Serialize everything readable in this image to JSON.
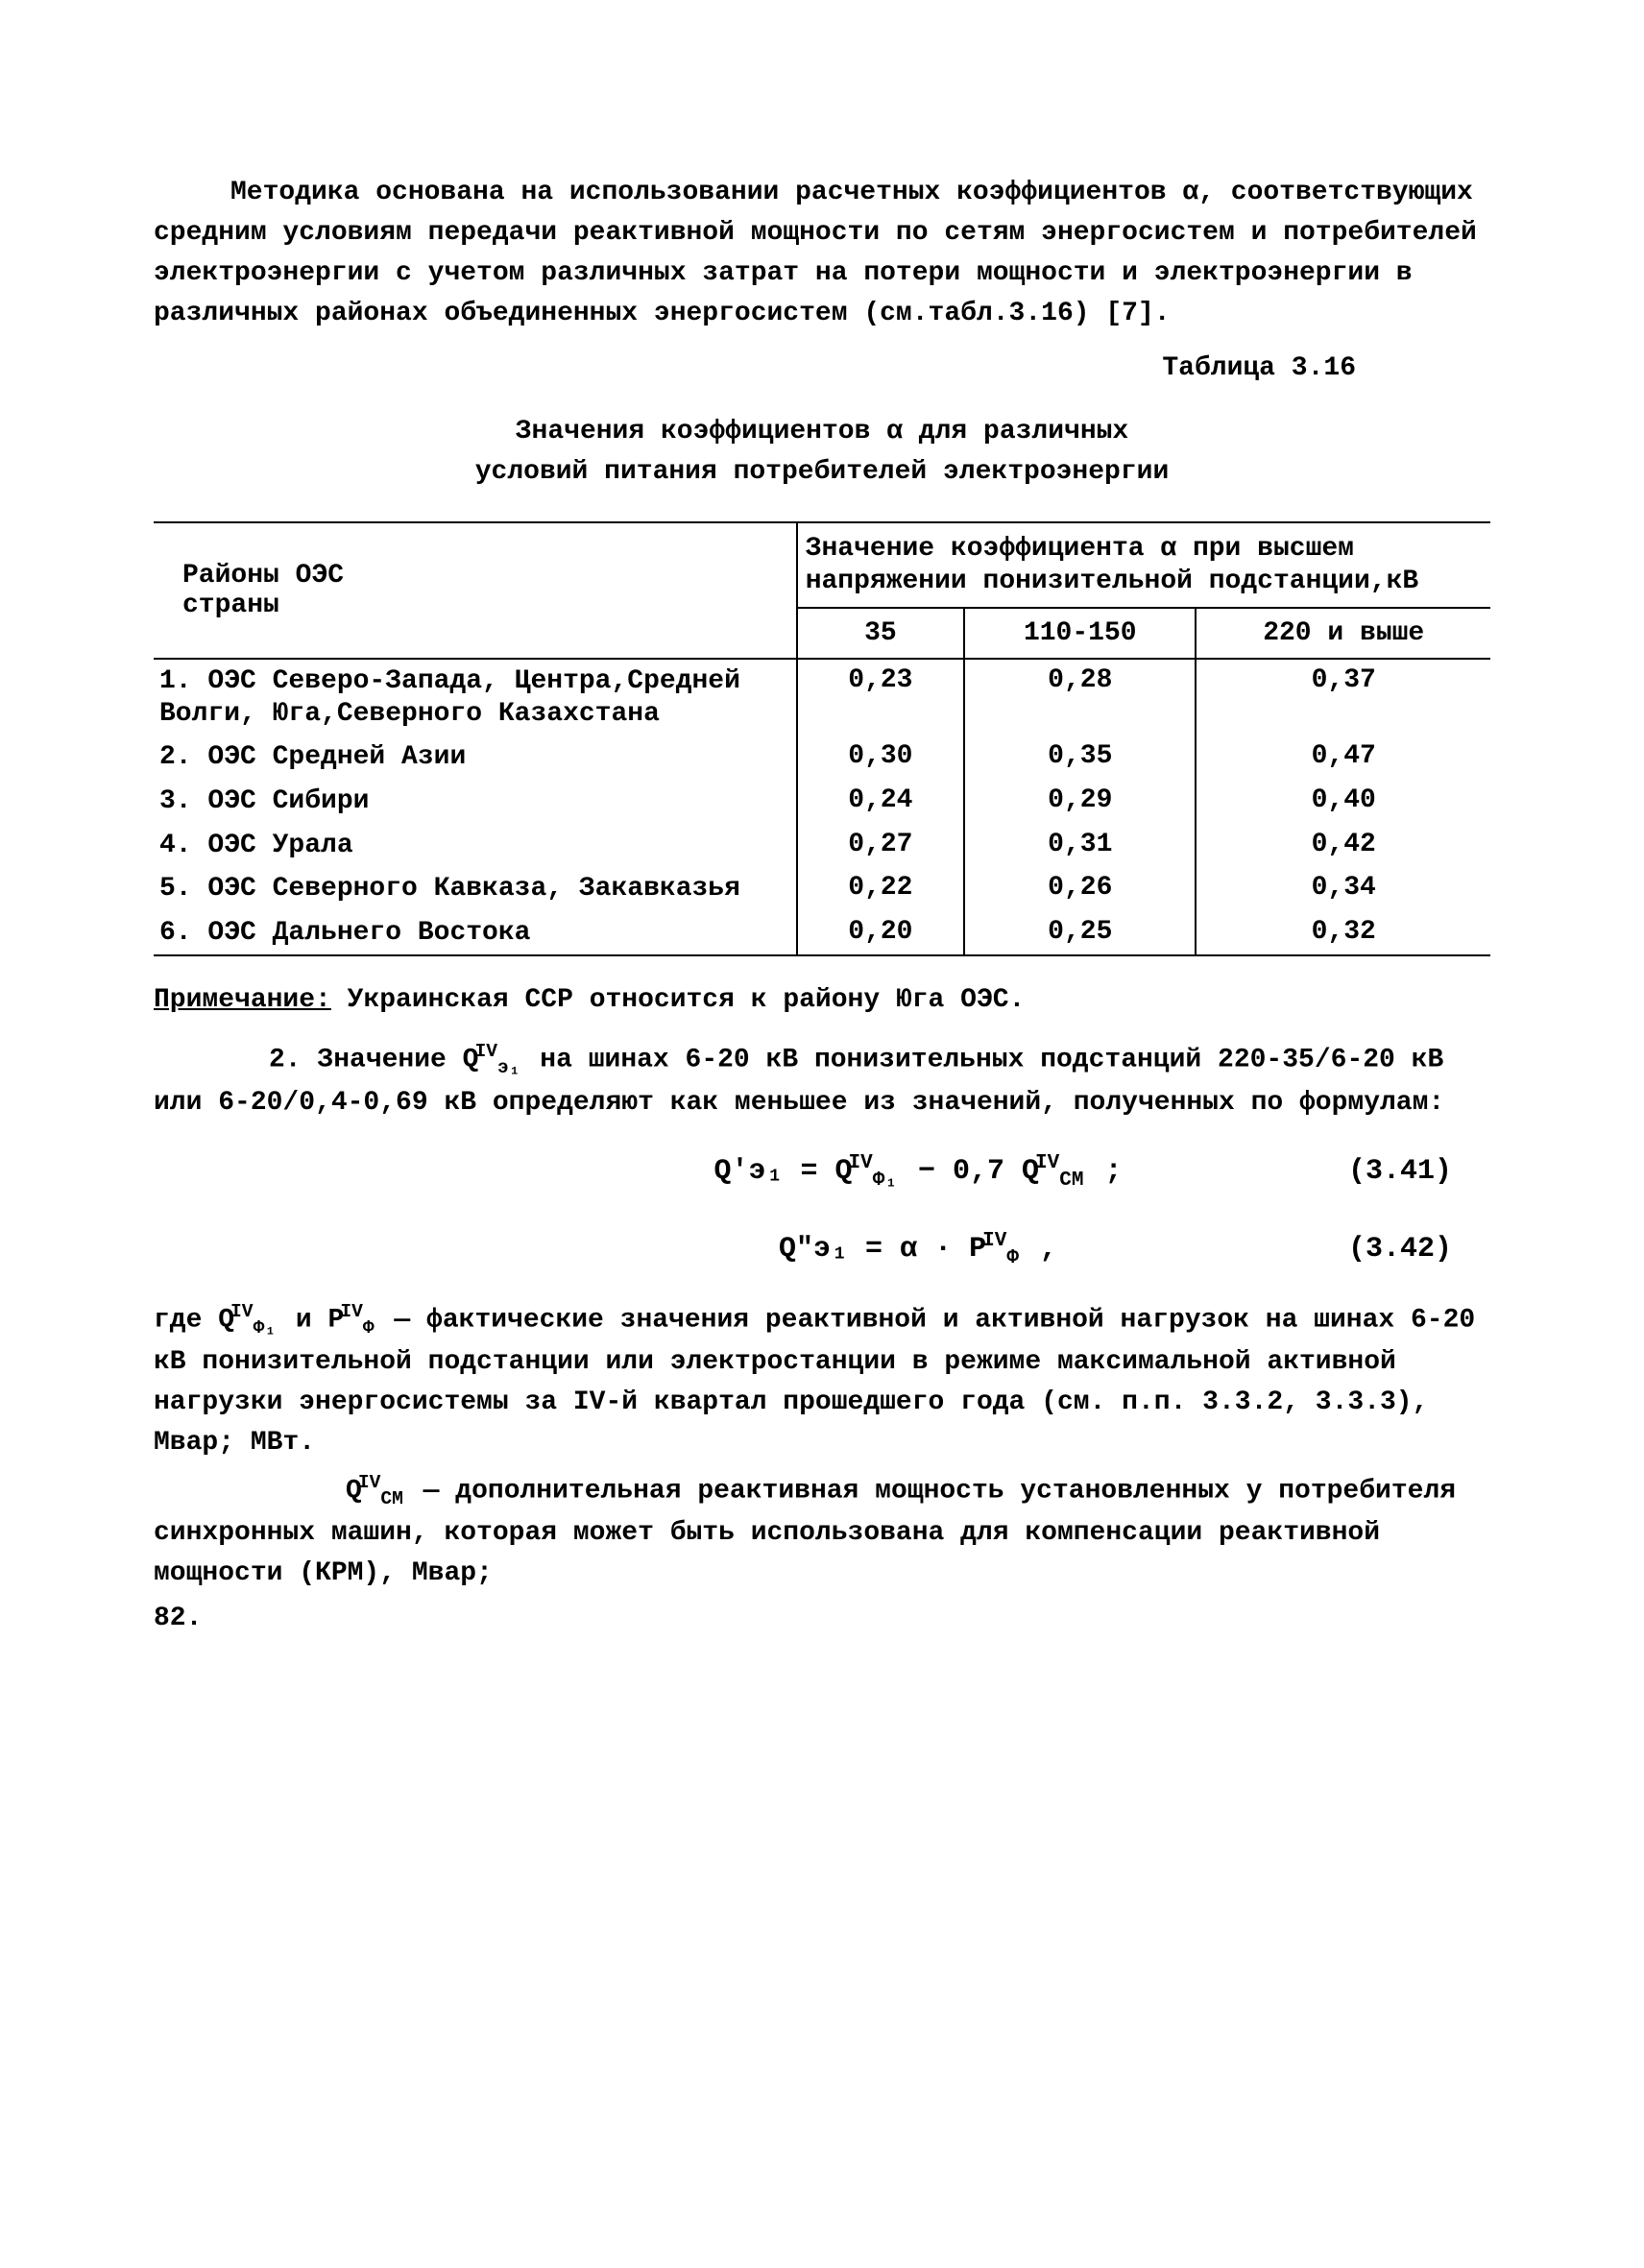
{
  "intro_paragraph": "Методика основана на использовании расчетных коэффициентов α, соответствующих средним условиям передачи реактивной мощности по сетям энергосистем и потребителей электроэнергии с учетом различных затрат на потери мощности и электроэнергии в различных районах объединенных энергосистем (см.табл.3.16) [7].",
  "table_label": "Таблица 3.16",
  "table_title_line1": "Значения коэффициентов  α   для различных",
  "table_title_line2": "условий питания потребителей электроэнергии",
  "table": {
    "header_left_line1": "Районы ОЭС",
    "header_left_line2": "страны",
    "header_right": "Значение коэффициента  α   при высшем напряжении понизительной подстанции,кВ",
    "subheaders": [
      "35",
      "110-150",
      "220 и выше"
    ],
    "rows": [
      {
        "region": "1. ОЭС Северо-Запада, Центра,Средней Волги, Юга,Северного Казахстана",
        "v35": "0,23",
        "v110": "0,28",
        "v220": "0,37"
      },
      {
        "region": "2. ОЭС Средней Азии",
        "v35": "0,30",
        "v110": "0,35",
        "v220": "0,47"
      },
      {
        "region": "3. ОЭС Сибири",
        "v35": "0,24",
        "v110": "0,29",
        "v220": "0,40"
      },
      {
        "region": "4. ОЭС Урала",
        "v35": "0,27",
        "v110": "0,31",
        "v220": "0,42"
      },
      {
        "region": "5. ОЭС Северного Кавказа, Закавказья",
        "v35": "0,22",
        "v110": "0,26",
        "v220": "0,34"
      },
      {
        "region": "6. ОЭС Дальнего Востока",
        "v35": "0,20",
        "v110": "0,25",
        "v220": "0,32"
      }
    ]
  },
  "note_label": "Примечание:",
  "note_text": "  Украинская ССР относится к району Юга ОЭС.",
  "section2_intro": "2. Значение  Q",
  "section2_super": "IV",
  "section2_sub": "э₁",
  "section2_rest": "  на шинах 6-20 кВ понизительных подстанций 220-35/6-20 кВ или 6-20/0,4-0,69 кВ определяют как меньшее из значений, полученных по формулам:",
  "formula1": {
    "text": "Q'э₁  =  Q",
    "phi_super": "IV",
    "phi_sub": "Ф₁",
    "mid": " − 0,7 Q",
    "cm_super": "IV",
    "cm_sub": "СМ",
    "end": " ;",
    "num": "(3.41)"
  },
  "formula2": {
    "text": "Q\"э₁  =  α · P",
    "super": "IV",
    "sub": "Ф",
    "end": "   ,",
    "num": "(3.42)"
  },
  "where_label": "где  ",
  "where_vars": "Q",
  "where_q_sup": "IV",
  "where_q_sub": "Ф₁",
  "where_and": "  и  P",
  "where_p_sup": "IV",
  "where_p_sub": "Ф",
  "where_text": "  — фактические значения реактивной и активной нагрузок на шинах 6-20 кВ понизительной подстанции или электростанции в режиме максимальной активной нагрузки энергосистемы за IV-й квартал прошедшего года (см. п.п. 3.3.2, 3.3.3), Мвар; МВт.",
  "qcm_var": "Q",
  "qcm_sup": "IV",
  "qcm_sub": "СМ",
  "qcm_text": " — дополнительная реактивная мощность установленных у потребителя синхронных машин, которая может быть использована для компенсации реактивной мощности (КРМ), Мвар;",
  "page_number": "82."
}
